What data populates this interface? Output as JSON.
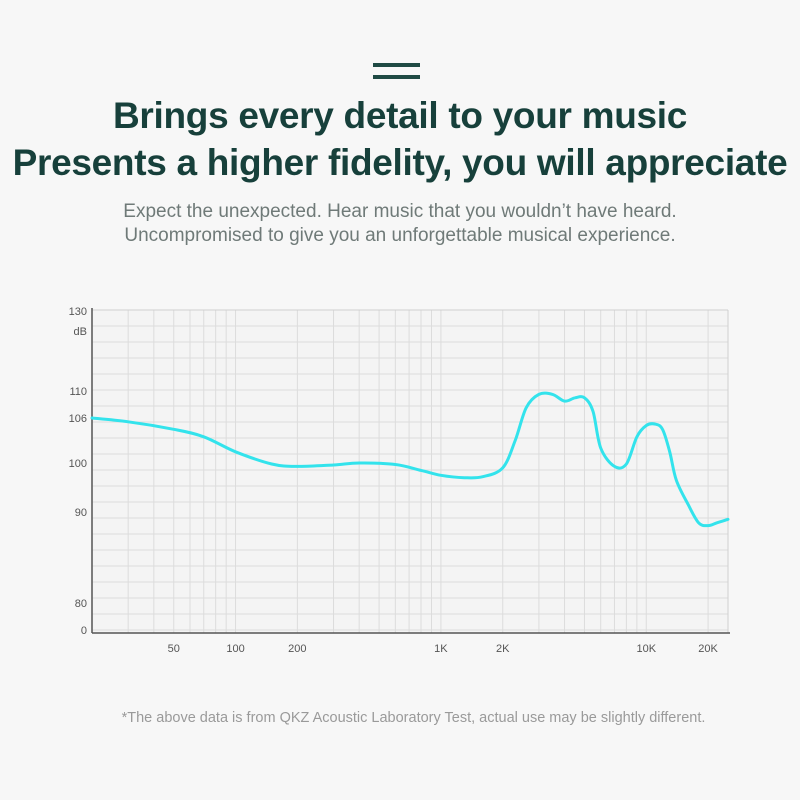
{
  "header": {
    "title_line1": "Brings every detail to your music",
    "title_line2": "Presents a higher fidelity, you will appreciate",
    "subtitle_line1": "Expect the unexpected. Hear music that you wouldn’t have heard.",
    "subtitle_line2": "Uncompromised to give you an unforgettable musical experience."
  },
  "footnote": "*The above data is from QKZ Acoustic Laboratory Test, actual use may be slightly different.",
  "colors": {
    "title": "#17403b",
    "curve": "#33e3ec",
    "grid": "#dcdcdc",
    "axis": "#555555"
  },
  "chart_data": {
    "type": "line",
    "ylabel": "dB",
    "yticks": [
      "130",
      "110",
      "106",
      "100",
      "90",
      "80",
      "0"
    ],
    "xticks": [
      "50",
      "100",
      "200",
      "1K",
      "2K",
      "10K",
      "20K"
    ],
    "xscale": "log",
    "xlim": [
      20,
      25000
    ],
    "grid": true,
    "series": [
      {
        "x": [
          20,
          30,
          50,
          70,
          100,
          150,
          200,
          300,
          400,
          600,
          800,
          1000,
          1300,
          1600,
          2000,
          2300,
          2600,
          3000,
          3500,
          4000,
          4500,
          5000,
          5500,
          6000,
          7000,
          8000,
          9000,
          10000,
          11000,
          12000,
          13000,
          14000,
          16000,
          18000,
          20000,
          22000,
          25000
        ],
        "y": [
          106,
          105.5,
          104.5,
          103.5,
          101.5,
          99.8,
          99.3,
          99.6,
          100.0,
          99.7,
          98.5,
          97.5,
          97.0,
          97.2,
          99.0,
          103.0,
          107.5,
          109.5,
          109.5,
          108.5,
          109.0,
          109.0,
          107.0,
          102.0,
          99.3,
          99.8,
          103.5,
          105.0,
          105.2,
          104.5,
          101.5,
          96.5,
          91.5,
          88.8,
          88.5,
          88.8,
          89.2
        ]
      }
    ]
  }
}
